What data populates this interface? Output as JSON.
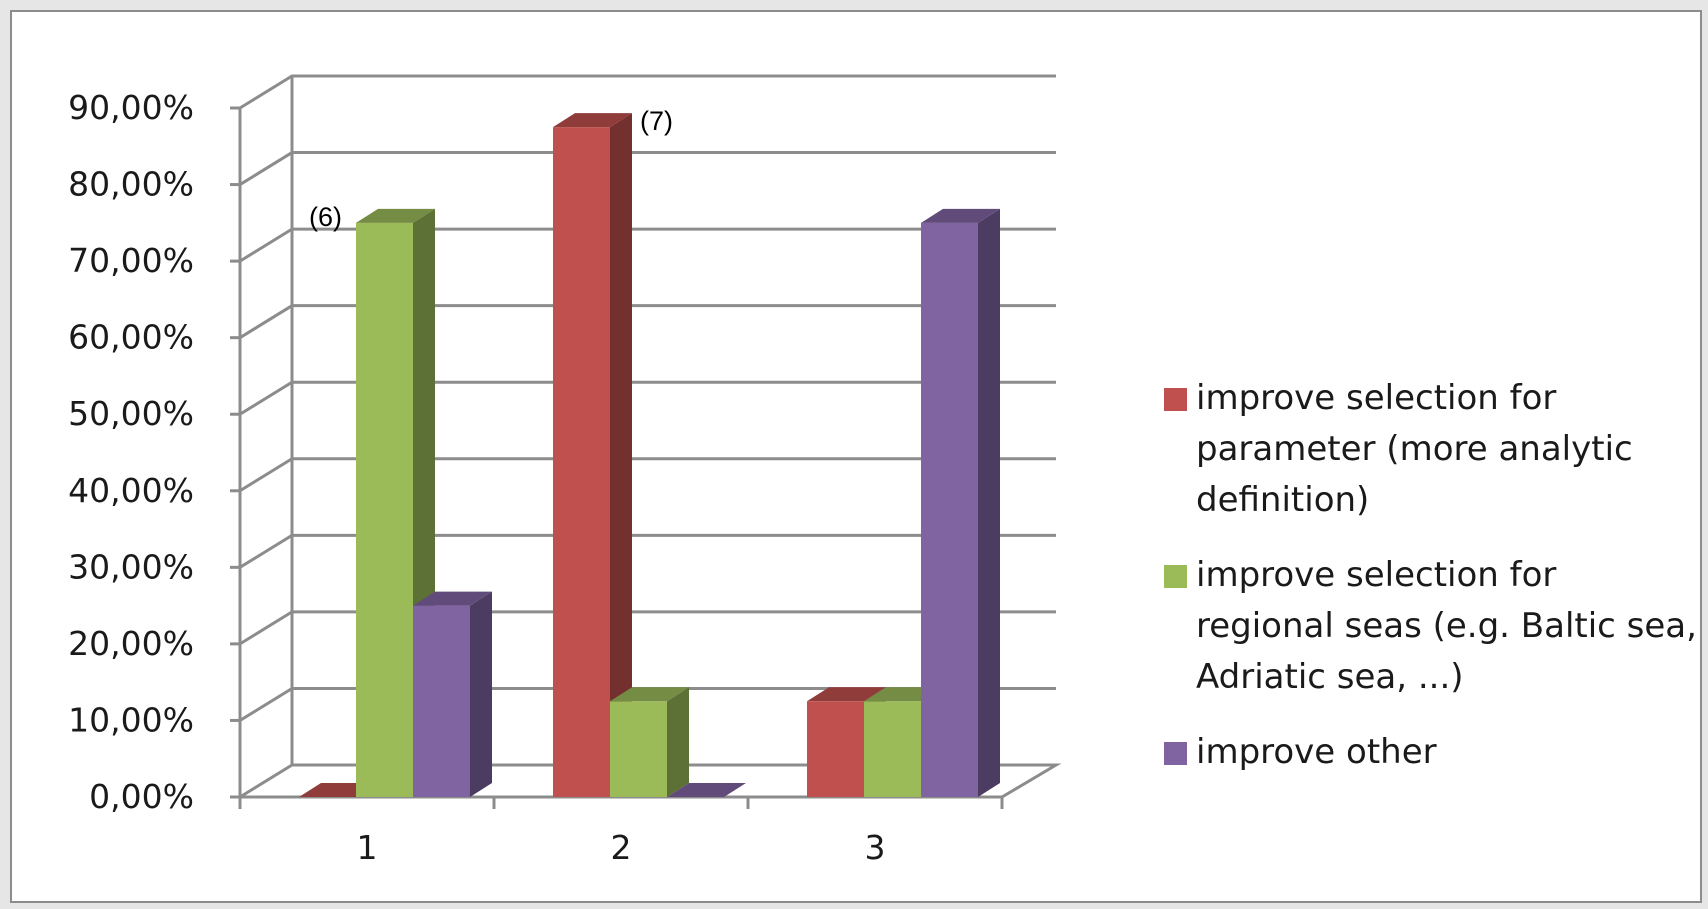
{
  "chart_data": {
    "type": "bar",
    "categories": [
      "1",
      "2",
      "3"
    ],
    "series": [
      {
        "name": "improve selection for parameter (more analytic definition)",
        "values": [
          0,
          87.5,
          12.5
        ],
        "color": "#c0504d"
      },
      {
        "name": "improve selection for regional seas (e.g. Baltic sea, Adriatic sea, ...)",
        "values": [
          75,
          12.5,
          12.5
        ],
        "color": "#9bbb59"
      },
      {
        "name": "improve other",
        "values": [
          25,
          0,
          75
        ],
        "color": "#8064a2"
      }
    ],
    "ylim": [
      0,
      90
    ],
    "y_ticks": [
      "0,00%",
      "10,00%",
      "20,00%",
      "30,00%",
      "40,00%",
      "50,00%",
      "60,00%",
      "70,00%",
      "80,00%",
      "90,00%"
    ],
    "annotations": [
      {
        "text": "(6)",
        "category": "1",
        "series": 1
      },
      {
        "text": "(7)",
        "category": "2",
        "series": 0
      }
    ],
    "legend_position": "right",
    "grid": true,
    "style": "3d-column"
  }
}
